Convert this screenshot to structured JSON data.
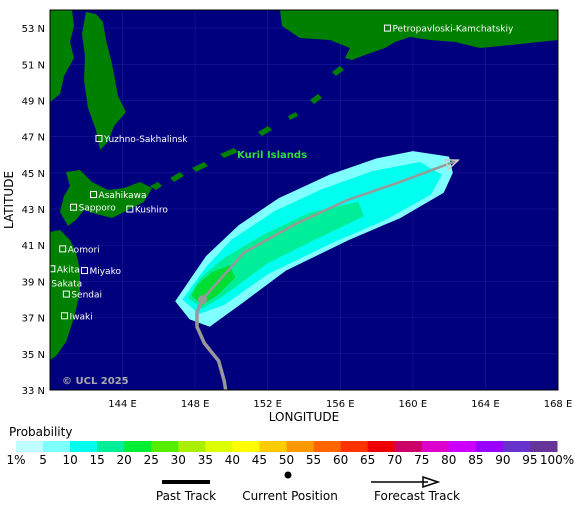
{
  "map": {
    "lat_range": [
      33,
      54
    ],
    "lon_range": [
      140,
      168
    ],
    "lat_ticks": [
      {
        "value": 53,
        "label": "53 N"
      },
      {
        "value": 51,
        "label": "51 N"
      },
      {
        "value": 49,
        "label": "49 N"
      },
      {
        "value": 47,
        "label": "47 N"
      },
      {
        "value": 45,
        "label": "45 N"
      },
      {
        "value": 43,
        "label": "43 N"
      },
      {
        "value": 41,
        "label": "41 N"
      },
      {
        "value": 39,
        "label": "39 N"
      },
      {
        "value": 37,
        "label": "37 N"
      },
      {
        "value": 35,
        "label": "35 N"
      },
      {
        "value": 33,
        "label": "33 N"
      }
    ],
    "lon_ticks": [
      {
        "value": 144,
        "label": "144 E"
      },
      {
        "value": 148,
        "label": "148 E"
      },
      {
        "value": 152,
        "label": "152 E"
      },
      {
        "value": 156,
        "label": "156 E"
      },
      {
        "value": 160,
        "label": "160 E"
      },
      {
        "value": 164,
        "label": "164 E"
      },
      {
        "value": 168,
        "label": "168 E"
      }
    ],
    "xlabel": "LONGITUDE",
    "ylabel": "LATITUDE",
    "copyright": "© UCL 2025",
    "region_label": "Kuril Islands",
    "colors": {
      "ocean": "#00007f",
      "land": "#008000",
      "grid": "#1a1a9a",
      "track": "#999999",
      "region_label": "#33dd33"
    },
    "cities": [
      {
        "name": "Petropavloski-Kamchatskiy",
        "lon": 158.6,
        "lat": 53.0
      },
      {
        "name": "Yuzhno-Sakhalinsk",
        "lon": 142.7,
        "lat": 46.9
      },
      {
        "name": "Asahikawa",
        "lon": 142.4,
        "lat": 43.8
      },
      {
        "name": "Sapporo",
        "lon": 141.3,
        "lat": 43.1
      },
      {
        "name": "Kushiro",
        "lon": 144.4,
        "lat": 43.0
      },
      {
        "name": "Aomori",
        "lon": 140.7,
        "lat": 40.8
      },
      {
        "name": "Akita",
        "lon": 140.1,
        "lat": 39.7
      },
      {
        "name": "Miyako",
        "lon": 141.9,
        "lat": 39.6
      },
      {
        "name": "Sakata",
        "lon": 139.8,
        "lat": 38.9
      },
      {
        "name": "Sendai",
        "lon": 140.9,
        "lat": 38.3
      },
      {
        "name": "Iwaki",
        "lon": 140.8,
        "lat": 37.1
      }
    ],
    "past_track": [
      [
        149.7,
        32.9
      ],
      [
        149.6,
        33.5
      ],
      [
        149.3,
        34.6
      ],
      [
        148.5,
        35.6
      ],
      [
        148.1,
        36.5
      ],
      [
        148.1,
        37.3
      ],
      [
        148.4,
        38.0
      ]
    ],
    "current_position": [
      148.4,
      38.0
    ],
    "forecast_track": [
      [
        148.4,
        38.0
      ],
      [
        150.7,
        40.6
      ],
      [
        153.6,
        42.2
      ],
      [
        156.4,
        43.5
      ],
      [
        159.3,
        44.5
      ],
      [
        162.5,
        45.7
      ]
    ],
    "probability_bands": [
      {
        "pct": 5,
        "color": "#7fffff",
        "path": [
          [
            146.9,
            37.9
          ],
          [
            147.7,
            36.9
          ],
          [
            148.8,
            36.5
          ],
          [
            150.6,
            37.8
          ],
          [
            153.0,
            39.6
          ],
          [
            156.5,
            41.3
          ],
          [
            159.3,
            42.5
          ],
          [
            161.7,
            43.9
          ],
          [
            162.2,
            45.0
          ],
          [
            162.0,
            45.9
          ],
          [
            160.0,
            46.2
          ],
          [
            158.0,
            45.8
          ],
          [
            155.4,
            44.9
          ],
          [
            152.6,
            43.6
          ],
          [
            150.4,
            42.1
          ],
          [
            148.6,
            40.4
          ]
        ]
      },
      {
        "pct": 10,
        "color": "#00ffee",
        "path": [
          [
            147.3,
            38.0
          ],
          [
            148.2,
            37.2
          ],
          [
            149.6,
            37.7
          ],
          [
            152.0,
            39.4
          ],
          [
            155.5,
            41.1
          ],
          [
            158.5,
            42.4
          ],
          [
            161.0,
            43.8
          ],
          [
            161.6,
            44.9
          ],
          [
            160.4,
            45.6
          ],
          [
            157.8,
            45.1
          ],
          [
            155.0,
            44.1
          ],
          [
            152.4,
            42.9
          ],
          [
            150.0,
            41.3
          ],
          [
            148.6,
            39.8
          ]
        ]
      },
      {
        "pct": 15,
        "color": "#00ee99",
        "path": [
          [
            147.6,
            38.1
          ],
          [
            148.4,
            37.5
          ],
          [
            149.7,
            38.3
          ],
          [
            152.0,
            40.0
          ],
          [
            154.8,
            41.4
          ],
          [
            157.3,
            42.6
          ],
          [
            157.0,
            43.4
          ],
          [
            154.3,
            42.8
          ],
          [
            151.8,
            41.6
          ],
          [
            149.6,
            40.3
          ],
          [
            148.3,
            39.2
          ]
        ]
      },
      {
        "pct": 20,
        "color": "#00dd33",
        "path": [
          [
            147.8,
            38.2
          ],
          [
            148.4,
            37.7
          ],
          [
            149.3,
            38.3
          ],
          [
            150.2,
            39.2
          ],
          [
            149.9,
            39.9
          ],
          [
            148.9,
            39.5
          ],
          [
            148.1,
            38.8
          ]
        ]
      }
    ]
  },
  "legend": {
    "title": "Probability",
    "stops": [
      {
        "label": "1%",
        "color": "#bfffff"
      },
      {
        "label": "5",
        "color": "#7fffff"
      },
      {
        "label": "10",
        "color": "#00ffee"
      },
      {
        "label": "15",
        "color": "#00ee99"
      },
      {
        "label": "20",
        "color": "#00ee33"
      },
      {
        "label": "25",
        "color": "#55ee00"
      },
      {
        "label": "30",
        "color": "#aaee00"
      },
      {
        "label": "35",
        "color": "#ddff00"
      },
      {
        "label": "40",
        "color": "#ffff00"
      },
      {
        "label": "45",
        "color": "#ffcc00"
      },
      {
        "label": "50",
        "color": "#ff9900"
      },
      {
        "label": "55",
        "color": "#ff6600"
      },
      {
        "label": "60",
        "color": "#ff3300"
      },
      {
        "label": "65",
        "color": "#ee0000"
      },
      {
        "label": "70",
        "color": "#cc0066"
      },
      {
        "label": "75",
        "color": "#dd00cc"
      },
      {
        "label": "80",
        "color": "#cc00ff"
      },
      {
        "label": "85",
        "color": "#9900ff"
      },
      {
        "label": "90",
        "color": "#6633cc"
      },
      {
        "label": "95",
        "color": "#663399"
      },
      {
        "label": "100%",
        "color": "#660066"
      }
    ]
  },
  "keys": {
    "past_track": "Past Track",
    "current_position": "Current Position",
    "forecast_track": "Forecast Track"
  }
}
